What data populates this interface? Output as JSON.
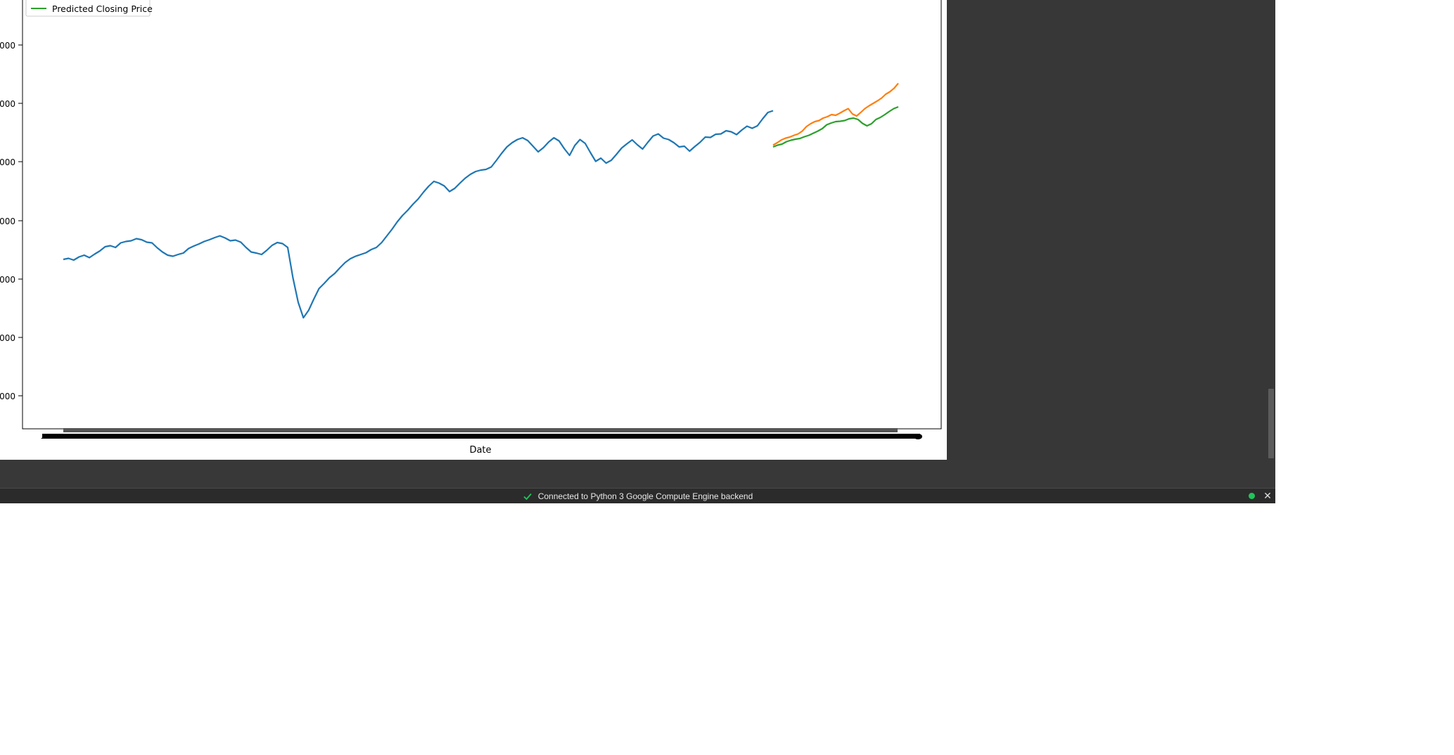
{
  "colors": {
    "observed": "#1f77b4",
    "actual": "#ff7f0e",
    "predicted": "#2ca02c",
    "status_ok": "#21c45a",
    "check": "#21c45a"
  },
  "status_bar": {
    "message": "Connected to Python 3 Google Compute Engine backend",
    "check_icon": "check-icon",
    "connection_indicator_icon": "status-dot-icon",
    "close_icon": "close-icon"
  },
  "chart_data": {
    "type": "line",
    "xlabel": "Date",
    "ylabel": "",
    "y_tick_labels": [
      "000",
      "000",
      "000",
      "000",
      "000",
      "000",
      "000"
    ],
    "legend": {
      "placement": "top-left",
      "entries": [
        "Predicted Closing Price"
      ]
    },
    "series": [
      {
        "name": "",
        "color_key": "observed",
        "values": [
          434,
          437,
          432,
          441,
          446,
          439,
          449,
          458,
          470,
          473,
          468,
          481,
          485,
          487,
          493,
          490,
          483,
          481,
          467,
          455,
          446,
          443,
          448,
          452,
          465,
          472,
          478,
          485,
          490,
          496,
          501,
          495,
          487,
          489,
          483,
          468,
          455,
          452,
          448,
          460,
          474,
          482,
          479,
          468,
          382,
          312,
          268,
          289,
          321,
          351,
          366,
          382,
          394,
          410,
          425,
          436,
          443,
          448,
          453,
          462,
          468,
          482,
          501,
          520,
          541,
          559,
          574,
          591,
          606,
          625,
          642,
          656,
          651,
          643,
          627,
          636,
          651,
          665,
          676,
          684,
          688,
          690,
          697,
          716,
          736,
          754,
          766,
          775,
          780,
          772,
          756,
          740,
          752,
          768,
          780,
          771,
          749,
          730,
          758,
          775,
          764,
          738,
          713,
          722,
          708,
          716,
          733,
          751,
          763,
          774,
          760,
          748,
          767,
          785,
          791,
          779,
          775,
          766,
          754,
          756,
          742,
          755,
          767,
          782,
          781,
          790,
          791,
          800,
          797,
          789,
          802,
          813,
          807,
          814,
          834,
          852,
          857
        ]
      },
      {
        "name": "",
        "color_key": "actual",
        "values": [
          759,
          766,
          774,
          779,
          782,
          787,
          791,
          799,
          812,
          820,
          826,
          829,
          836,
          840,
          846,
          844,
          850,
          857,
          863,
          848,
          842,
          852,
          863,
          871,
          878,
          885,
          893,
          904,
          911,
          921,
          935
        ]
      },
      {
        "name": "Predicted Closing Price",
        "color_key": "predicted",
        "values": [
          754,
          759,
          762,
          769,
          773,
          776,
          778,
          783,
          787,
          793,
          799,
          806,
          817,
          822,
          826,
          827,
          829,
          834,
          836,
          832,
          821,
          814,
          820,
          832,
          838,
          846,
          855,
          863,
          868
        ]
      }
    ]
  }
}
